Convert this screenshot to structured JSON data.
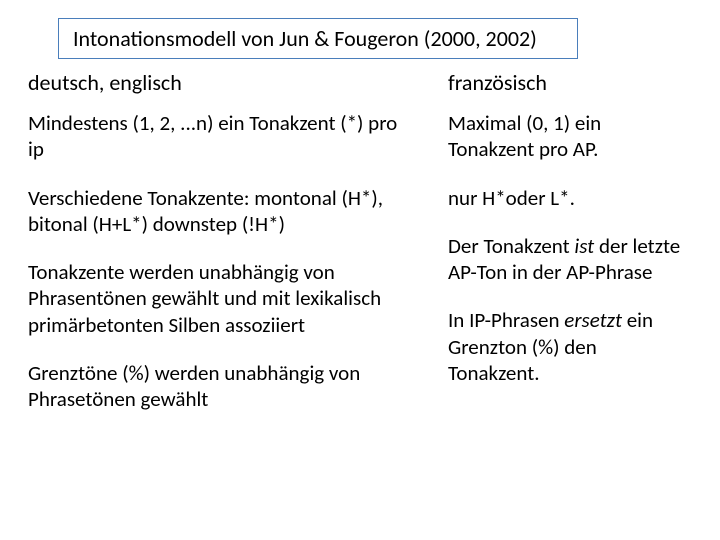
{
  "title": "Intonationsmodell von Jun & Fougeron (2000, 2002)",
  "left": {
    "header": "deutsch, englisch",
    "r1": "Mindestens (1, 2, ...n) ein Tonakzent (*) pro ip",
    "r2": "Verschiedene Tonakzente: montonal (H*), bitonal (H+L*) downstep (!H*)",
    "r3": "Tonakzente werden unabhängig von Phrasentönen gewählt und mit lexikalisch primärbetonten Silben assoziiert",
    "r4": "Grenztöne (%) werden unabhängig von Phrasetönen gewählt"
  },
  "right": {
    "header": "französisch",
    "r1": "Maximal (0, 1) ein Tonakzent pro AP.",
    "r2": "nur H*oder  L*.",
    "r3a": "Der Tonakzent ",
    "r3b": "ist",
    "r3c": " der letzte AP-Ton in der AP-Phrase",
    "r4a": "In IP-Phrasen ",
    "r4b": "ersetzt",
    "r4c": " ein Grenzton (%) den Tonakzent."
  },
  "colors": {
    "border": "#4a7ebb",
    "background": "#ffffff",
    "text": "#000000"
  },
  "fonts": {
    "title_size": 22,
    "body_size": 21
  }
}
